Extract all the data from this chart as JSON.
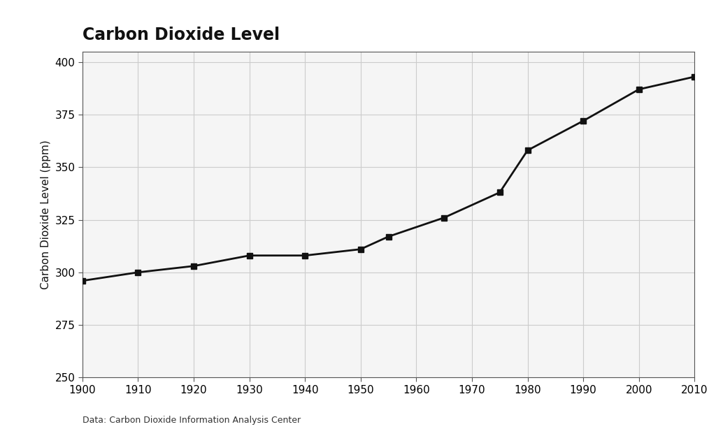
{
  "title": "Carbon Dioxide Level",
  "ylabel": "Carbon Dioxide Level (ppm)",
  "source": "Data: Carbon Dioxide Information Analysis Center",
  "years": [
    1900,
    1910,
    1920,
    1930,
    1940,
    1950,
    1955,
    1965,
    1975,
    1980,
    1990,
    2000,
    2010
  ],
  "co2": [
    296,
    300,
    303,
    308,
    308,
    311,
    317,
    326,
    338,
    358,
    372,
    387,
    393
  ],
  "xlim": [
    1900,
    2010
  ],
  "ylim": [
    250,
    405
  ],
  "yticks": [
    250,
    275,
    300,
    325,
    350,
    375,
    400
  ],
  "xticks": [
    1900,
    1910,
    1920,
    1930,
    1940,
    1950,
    1960,
    1970,
    1980,
    1990,
    2000,
    2010
  ],
  "line_color": "#111111",
  "marker": "s",
  "marker_size": 6,
  "marker_color": "#111111",
  "grid_color": "#cccccc",
  "plot_bg_color": "#f5f5f5",
  "fig_bg_color": "#ffffff",
  "title_fontsize": 17,
  "label_fontsize": 11,
  "tick_fontsize": 11,
  "source_fontsize": 9,
  "line_width": 2.0
}
